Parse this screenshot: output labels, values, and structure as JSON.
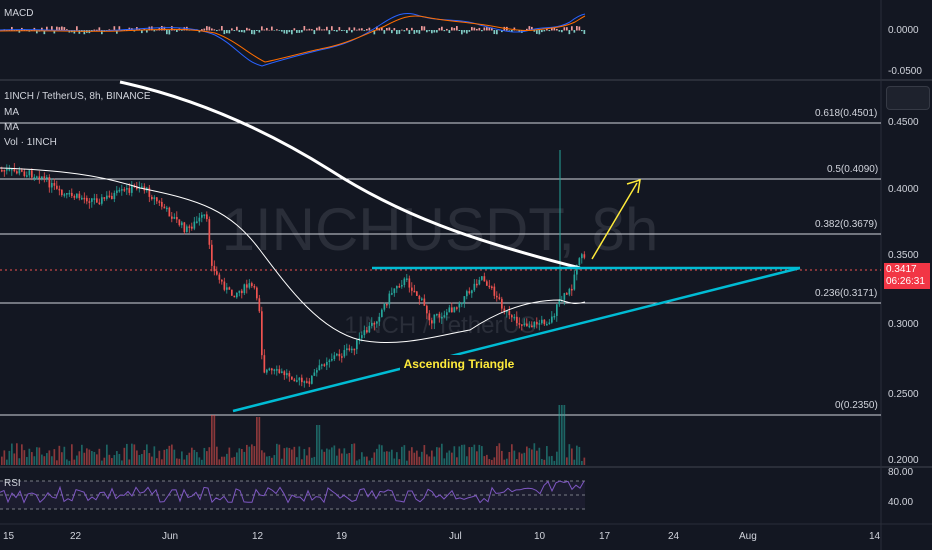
{
  "macd_panel": {
    "title": "MACD",
    "ticks": [
      "0.0000",
      "-0.0500"
    ]
  },
  "main_panel": {
    "title": "1INCH / TetherUS, 8h, BINANCE",
    "legend": [
      "MA",
      "MA",
      "Vol · 1INCH"
    ],
    "watermark": "1INCHUSDT, 8h",
    "watermark_sub": "1INCH / TetherUS",
    "annotation": "Ascending Triangle",
    "fib_levels": [
      {
        "label": "0.618(0.4501)",
        "value": 0.4501
      },
      {
        "label": "0.5(0.4090)",
        "value": 0.409
      },
      {
        "label": "0.382(0.3679)",
        "value": 0.3679
      },
      {
        "label": "0.236(0.3171)",
        "value": 0.3171
      },
      {
        "label": "0(0.2350)",
        "value": 0.235
      }
    ],
    "price_ticks": [
      "0.4500",
      "0.4000",
      "0.3500",
      "0.3000",
      "0.2500",
      "0.2000"
    ],
    "current_price": "0.3417",
    "countdown": "06:26:31"
  },
  "rsi_panel": {
    "title": "RSI",
    "ticks": [
      "80.00",
      "40.00"
    ]
  },
  "time_axis": [
    "15",
    "22",
    "Jun",
    "12",
    "19",
    "Jul",
    "10",
    "17",
    "24",
    "Aug",
    "14"
  ],
  "colors": {
    "background": "#131722",
    "up": "#26a69a",
    "down": "#ef5350",
    "triangle": "#00bcd4",
    "arrow": "#ffeb3b",
    "macd": "#2962ff",
    "signal": "#ff6d00",
    "rsi": "#7e57c2"
  }
}
